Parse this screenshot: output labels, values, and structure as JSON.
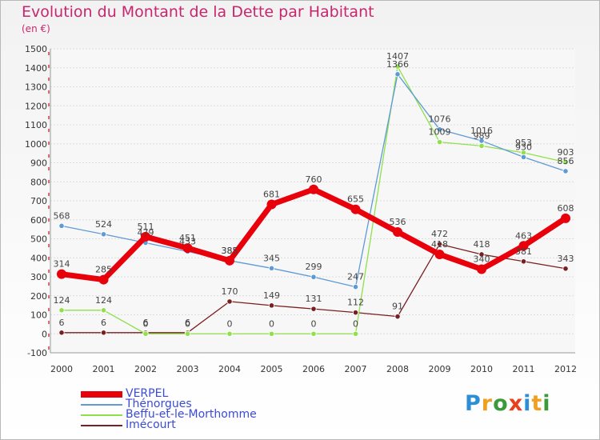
{
  "title": "Evolution du Montant de la Dette par Habitant",
  "subtitle": "(en €)",
  "logo_text": "Proxiti",
  "chart_data": {
    "type": "line",
    "title": "Evolution du Montant de la Dette par Habitant",
    "ylabel": "(en €)",
    "xlabel": "",
    "ylim": [
      -100,
      1500
    ],
    "yticks": [
      -100,
      0,
      100,
      200,
      300,
      400,
      500,
      600,
      700,
      800,
      900,
      1000,
      1100,
      1200,
      1300,
      1400,
      1500
    ],
    "categories": [
      "2000",
      "2001",
      "2002",
      "2003",
      "2004",
      "2005",
      "2006",
      "2007",
      "2008",
      "2009",
      "2010",
      "2011",
      "2012"
    ],
    "grid": "horizontal",
    "legend_position": "bottom-left",
    "series": [
      {
        "name": "VERPEL",
        "color": "#e8000b",
        "values": [
          314,
          285,
          511,
          451,
          385,
          681,
          760,
          655,
          536,
          418,
          340,
          463,
          608
        ]
      },
      {
        "name": "Thénorgues",
        "color": "#5e9ad6",
        "values": [
          568,
          524,
          479,
          433,
          385,
          345,
          299,
          247,
          1366,
          1076,
          1016,
          930,
          856
        ]
      },
      {
        "name": "Beffu-et-le-Morthomme",
        "color": "#8fe04a",
        "values": [
          124,
          124,
          0,
          0,
          0,
          0,
          0,
          0,
          1407,
          1009,
          989,
          953,
          903
        ]
      },
      {
        "name": "Imécourt",
        "color": "#7a1f1f",
        "values": [
          6,
          6,
          6,
          6,
          170,
          149,
          131,
          112,
          91,
          472,
          418,
          381,
          343
        ]
      }
    ]
  }
}
